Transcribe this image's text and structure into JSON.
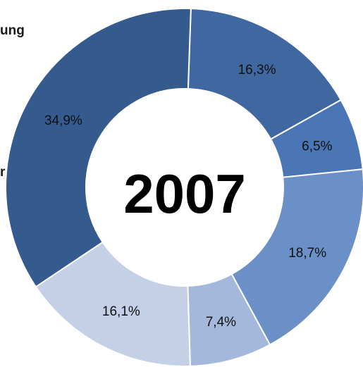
{
  "left_labels": {
    "top": "ung",
    "mid": "r"
  },
  "chart_data": {
    "type": "pie",
    "subtype": "donut",
    "center_label": "2007",
    "start_angle_deg": 2,
    "direction": "clockwise",
    "segments": [
      {
        "value": 16.3,
        "label": "16,3%",
        "color": "#3f67a0"
      },
      {
        "value": 6.5,
        "label": "6,5%",
        "color": "#4a76b5"
      },
      {
        "value": 18.7,
        "label": "18,7%",
        "color": "#6b8fc7"
      },
      {
        "value": 7.4,
        "label": "7,4%",
        "color": "#a4b8dc"
      },
      {
        "value": 16.1,
        "label": "16,1%",
        "color": "#c3d0e6"
      },
      {
        "value": 34.9,
        "label": "34,9%",
        "color": "#355a8d"
      }
    ]
  }
}
